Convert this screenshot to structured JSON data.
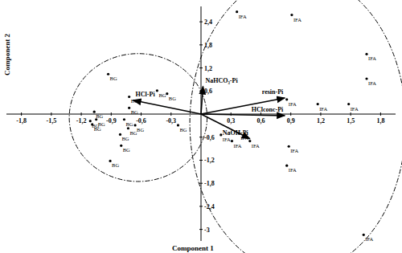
{
  "chart_data": {
    "type": "scatter",
    "x_label": "Component 1",
    "y_label": "Component 2",
    "xlim": [
      -1.95,
      1.95
    ],
    "ylim": [
      -3.3,
      2.8
    ],
    "xticks": [
      {
        "value": -1.8,
        "label": "-1,8"
      },
      {
        "value": -1.5,
        "label": "-1,5"
      },
      {
        "value": -1.2,
        "label": "-1,2"
      },
      {
        "value": -0.9,
        "label": "-0,9"
      },
      {
        "value": -0.6,
        "label": "-0,6"
      },
      {
        "value": -0.3,
        "label": "-0,3"
      },
      {
        "value": 0.3,
        "label": "0,3"
      },
      {
        "value": 0.6,
        "label": "0,6"
      },
      {
        "value": 0.9,
        "label": "0,9"
      },
      {
        "value": 1.2,
        "label": "1,2"
      },
      {
        "value": 1.5,
        "label": "1,5"
      },
      {
        "value": 1.8,
        "label": "1,8"
      }
    ],
    "yticks": [
      {
        "value": 2.4,
        "label": "2,4"
      },
      {
        "value": 1.8,
        "label": "1,8"
      },
      {
        "value": 1.2,
        "label": "1,2"
      },
      {
        "value": 0.6,
        "label": "0,6"
      },
      {
        "value": -0.6,
        "label": "-0,6"
      },
      {
        "value": -1.2,
        "label": "-1,2"
      },
      {
        "value": -1.8,
        "label": "-1,8"
      },
      {
        "value": -2.4,
        "label": "-2,4"
      },
      -3
    ],
    "grid": false,
    "series": [
      {
        "name": "BG",
        "color": "#000000",
        "marker": "circle",
        "x": [
          -0.93,
          -0.72,
          -0.44,
          -0.34,
          -1.07,
          -0.72,
          -1.05,
          -1.11,
          -1.09,
          -0.77,
          -0.66,
          -0.73,
          -0.23,
          -0.81,
          -0.8,
          -0.91
        ],
        "values": [
          1.04,
          0.45,
          0.61,
          0.53,
          0.06,
          0.16,
          -0.14,
          -0.18,
          -0.27,
          -0.14,
          -0.29,
          -0.37,
          -0.29,
          -0.53,
          -0.82,
          -1.22
        ]
      },
      {
        "name": "IFA",
        "color": "#000000",
        "marker": "circle",
        "x": [
          0.36,
          0.91,
          1.66,
          1.66,
          0.86,
          1.17,
          1.48,
          0.2,
          0.38,
          0.49,
          0.31,
          0.88,
          0.86,
          1.63
        ],
        "values": [
          2.66,
          2.58,
          1.56,
          0.92,
          0.38,
          0.26,
          0.26,
          -0.54,
          -0.5,
          -0.7,
          -0.7,
          -0.84,
          -1.34,
          -3.14
        ]
      }
    ],
    "vectors": [
      {
        "name": "NaHCO₃-Pi",
        "x": 0.02,
        "y": 0.72
      },
      {
        "name": "HCl-Pi",
        "x": -0.68,
        "y": 0.36
      },
      {
        "name": "resin-Pi",
        "x": 0.84,
        "y": 0.42
      },
      {
        "name": "HClconc-Pi",
        "x": 0.84,
        "y": -0.04
      },
      {
        "name": "NaOH-Pi",
        "x": 0.49,
        "y": -0.64
      }
    ]
  }
}
